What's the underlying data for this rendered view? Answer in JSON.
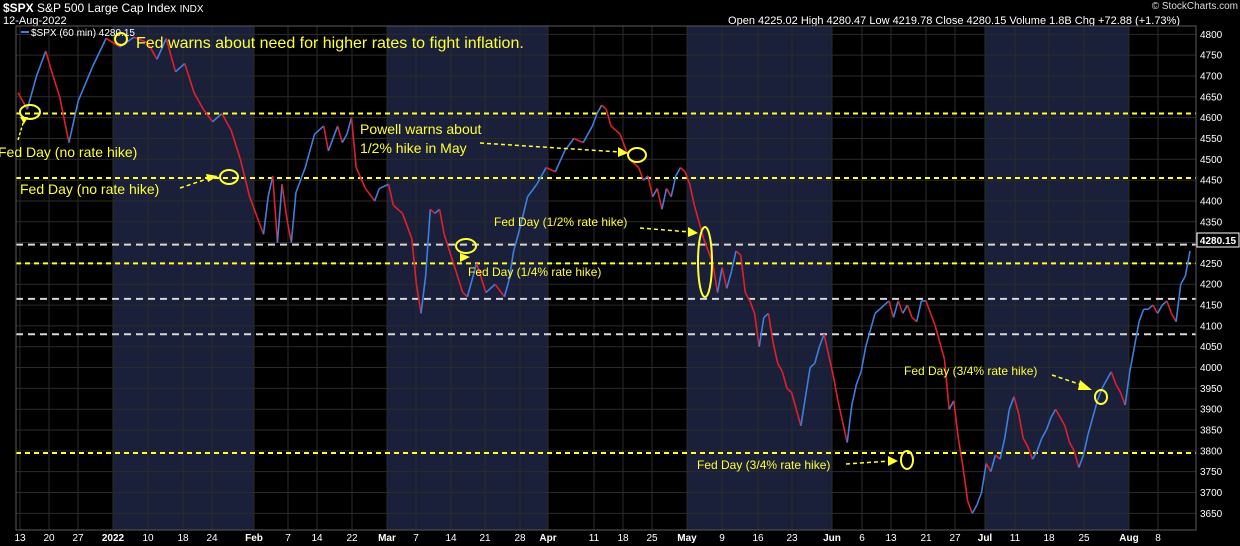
{
  "header": {
    "symbol": "$SPX",
    "name": "S&P 500 Large Cap Index",
    "exchange": "INDX",
    "date": "12-Aug-2022",
    "ohlc": "Open 4225.02  High 4280.47  Low 4219.78  Close 4280.15  Volume 1.8B  Chg +72.88 (+1.73%)",
    "watermark": "© StockCharts.com",
    "series_label": "$SPX (60 min) 4280.15"
  },
  "colors": {
    "background": "#000000",
    "band_shade": "#1a1f3a",
    "up": "#3d7fe0",
    "down": "#e0202c",
    "yellow": "#ffff33",
    "white_line": "#d8d8d8",
    "grid": "#2b2b2b",
    "price_tag_bg": "#000000"
  },
  "chart_data": {
    "type": "line",
    "title": "$SPX (60 min)",
    "ylim": [
      3610,
      4820
    ],
    "yticks": [
      3650,
      3700,
      3750,
      3800,
      3850,
      3900,
      3950,
      4000,
      4050,
      4100,
      4150,
      4200,
      4250,
      4300,
      4350,
      4400,
      4450,
      4500,
      4550,
      4600,
      4650,
      4700,
      4750,
      4800
    ],
    "xticks": [
      "13",
      "20",
      "27",
      "2022",
      "10",
      "18",
      "24",
      "Feb",
      "7",
      "14",
      "22",
      "Mar",
      "7",
      "14",
      "21",
      "28",
      "Apr",
      "11",
      "18",
      "25",
      "May",
      "9",
      "16",
      "23",
      "Jun",
      "6",
      "13",
      "21",
      "27",
      "Jul",
      "11",
      "18",
      "25",
      "Aug",
      "8"
    ],
    "last_price": "4280.15",
    "horizontal_lines": [
      {
        "value": 4610,
        "style": "yellow-dashed"
      },
      {
        "value": 4455,
        "style": "yellow-dashed"
      },
      {
        "value": 4295,
        "style": "white-dashed"
      },
      {
        "value": 4250,
        "style": "yellow-dashed"
      },
      {
        "value": 4165,
        "style": "white-dashed"
      },
      {
        "value": 4080,
        "style": "white-dashed"
      },
      {
        "value": 3795,
        "style": "yellow-dashed"
      }
    ],
    "series": [
      {
        "values": [
          [
            0,
            4660
          ],
          [
            2,
            4620
          ],
          [
            4,
            4700
          ],
          [
            6,
            4760
          ],
          [
            7,
            4720
          ],
          [
            9,
            4650
          ],
          [
            11,
            4540
          ],
          [
            13,
            4640
          ],
          [
            16,
            4720
          ],
          [
            19,
            4790
          ],
          [
            22,
            4770
          ],
          [
            25,
            4793
          ],
          [
            28,
            4780
          ],
          [
            30,
            4740
          ],
          [
            32,
            4790
          ],
          [
            34,
            4710
          ],
          [
            36,
            4730
          ],
          [
            38,
            4660
          ],
          [
            40,
            4620
          ],
          [
            42,
            4590
          ],
          [
            44,
            4610
          ],
          [
            46,
            4570
          ],
          [
            48,
            4500
          ],
          [
            50,
            4410
          ],
          [
            52,
            4350
          ],
          [
            53,
            4320
          ],
          [
            54,
            4410
          ],
          [
            55,
            4460
          ],
          [
            56,
            4300
          ],
          [
            57,
            4440
          ],
          [
            58,
            4360
          ],
          [
            59,
            4300
          ],
          [
            60,
            4420
          ],
          [
            62,
            4480
          ],
          [
            64,
            4560
          ],
          [
            66,
            4580
          ],
          [
            67,
            4520
          ],
          [
            69,
            4580
          ],
          [
            70,
            4540
          ],
          [
            71,
            4560
          ],
          [
            72,
            4600
          ],
          [
            73,
            4480
          ],
          [
            75,
            4430
          ],
          [
            77,
            4400
          ],
          [
            78,
            4430
          ],
          [
            80,
            4440
          ],
          [
            81,
            4390
          ],
          [
            83,
            4370
          ],
          [
            85,
            4310
          ],
          [
            86,
            4200
          ],
          [
            87,
            4130
          ],
          [
            88,
            4220
          ],
          [
            89,
            4380
          ],
          [
            90,
            4370
          ],
          [
            91,
            4380
          ],
          [
            92,
            4320
          ],
          [
            94,
            4250
          ],
          [
            96,
            4180
          ],
          [
            97,
            4170
          ],
          [
            99,
            4250
          ],
          [
            101,
            4180
          ],
          [
            103,
            4200
          ],
          [
            105,
            4170
          ],
          [
            106,
            4210
          ],
          [
            107,
            4280
          ],
          [
            108,
            4320
          ],
          [
            110,
            4410
          ],
          [
            112,
            4440
          ],
          [
            114,
            4480
          ],
          [
            116,
            4470
          ],
          [
            118,
            4520
          ],
          [
            120,
            4550
          ],
          [
            122,
            4540
          ],
          [
            124,
            4580
          ],
          [
            125,
            4610
          ],
          [
            126,
            4630
          ],
          [
            127,
            4620
          ],
          [
            128,
            4580
          ],
          [
            130,
            4560
          ],
          [
            132,
            4500
          ],
          [
            134,
            4480
          ],
          [
            135,
            4450
          ],
          [
            136,
            4460
          ],
          [
            137,
            4410
          ],
          [
            138,
            4430
          ],
          [
            139,
            4380
          ],
          [
            140,
            4430
          ],
          [
            141,
            4410
          ],
          [
            142,
            4460
          ],
          [
            143,
            4480
          ],
          [
            144,
            4470
          ],
          [
            145,
            4440
          ],
          [
            146,
            4390
          ],
          [
            148,
            4310
          ],
          [
            150,
            4250
          ],
          [
            151,
            4180
          ],
          [
            152,
            4240
          ],
          [
            153,
            4190
          ],
          [
            154,
            4230
          ],
          [
            155,
            4280
          ],
          [
            156,
            4270
          ],
          [
            157,
            4180
          ],
          [
            158,
            4160
          ],
          [
            159,
            4130
          ],
          [
            160,
            4050
          ],
          [
            161,
            4120
          ],
          [
            162,
            4130
          ],
          [
            163,
            4060
          ],
          [
            164,
            4010
          ],
          [
            165,
            3990
          ],
          [
            166,
            3950
          ],
          [
            167,
            3940
          ],
          [
            168,
            3900
          ],
          [
            169,
            3860
          ],
          [
            170,
            3930
          ],
          [
            171,
            4000
          ],
          [
            172,
            4010
          ],
          [
            173,
            4050
          ],
          [
            174,
            4080
          ],
          [
            175,
            4030
          ],
          [
            176,
            3980
          ],
          [
            177,
            3920
          ],
          [
            178,
            3870
          ],
          [
            179,
            3820
          ],
          [
            180,
            3910
          ],
          [
            181,
            3960
          ],
          [
            182,
            3990
          ],
          [
            183,
            4050
          ],
          [
            184,
            4090
          ],
          [
            185,
            4130
          ],
          [
            186,
            4140
          ],
          [
            187,
            4150
          ],
          [
            188,
            4160
          ],
          [
            189,
            4120
          ],
          [
            190,
            4160
          ],
          [
            191,
            4130
          ],
          [
            192,
            4150
          ],
          [
            193,
            4120
          ],
          [
            194,
            4110
          ],
          [
            195,
            4160
          ],
          [
            196,
            4160
          ],
          [
            197,
            4130
          ],
          [
            198,
            4100
          ],
          [
            199,
            4060
          ],
          [
            200,
            4020
          ],
          [
            201,
            3900
          ],
          [
            202,
            3920
          ],
          [
            203,
            3830
          ],
          [
            204,
            3760
          ],
          [
            205,
            3680
          ],
          [
            206,
            3650
          ],
          [
            207,
            3670
          ],
          [
            208,
            3700
          ],
          [
            209,
            3770
          ],
          [
            210,
            3750
          ],
          [
            211,
            3790
          ],
          [
            212,
            3780
          ],
          [
            213,
            3830
          ],
          [
            214,
            3900
          ],
          [
            215,
            3930
          ],
          [
            216,
            3890
          ],
          [
            217,
            3830
          ],
          [
            218,
            3810
          ],
          [
            219,
            3780
          ],
          [
            220,
            3800
          ],
          [
            221,
            3830
          ],
          [
            222,
            3850
          ],
          [
            223,
            3880
          ],
          [
            224,
            3900
          ],
          [
            225,
            3880
          ],
          [
            226,
            3860
          ],
          [
            227,
            3820
          ],
          [
            228,
            3800
          ],
          [
            229,
            3760
          ],
          [
            230,
            3790
          ],
          [
            231,
            3840
          ],
          [
            232,
            3880
          ],
          [
            233,
            3920
          ],
          [
            234,
            3950
          ],
          [
            235,
            3970
          ],
          [
            236,
            3990
          ],
          [
            237,
            3960
          ],
          [
            238,
            3940
          ],
          [
            239,
            3910
          ],
          [
            240,
            3990
          ],
          [
            241,
            4050
          ],
          [
            242,
            4110
          ],
          [
            243,
            4140
          ],
          [
            244,
            4140
          ],
          [
            245,
            4150
          ],
          [
            246,
            4130
          ],
          [
            247,
            4150
          ],
          [
            248,
            4160
          ],
          [
            249,
            4130
          ],
          [
            250,
            4110
          ],
          [
            251,
            4200
          ],
          [
            252,
            4220
          ],
          [
            253,
            4280
          ]
        ]
      }
    ]
  },
  "annotations": {
    "fed_warns": "Fed warns about need for higher rates to fight inflation.",
    "fed_day_1": "Fed Day (no rate hike)",
    "fed_day_2": "Fed Day (no rate hike)",
    "powell_line1": "Powell warns about",
    "powell_line2": "1/2% hike in May",
    "fed_day_half": "Fed Day (1/2% rate hike)",
    "fed_day_quarter": "Fed Day (1/4% rate hike)",
    "fed_day_34_jul": "Fed Day (3/4% rate hike)",
    "fed_day_34_jun": "Fed Day (3/4% rate hike)"
  }
}
